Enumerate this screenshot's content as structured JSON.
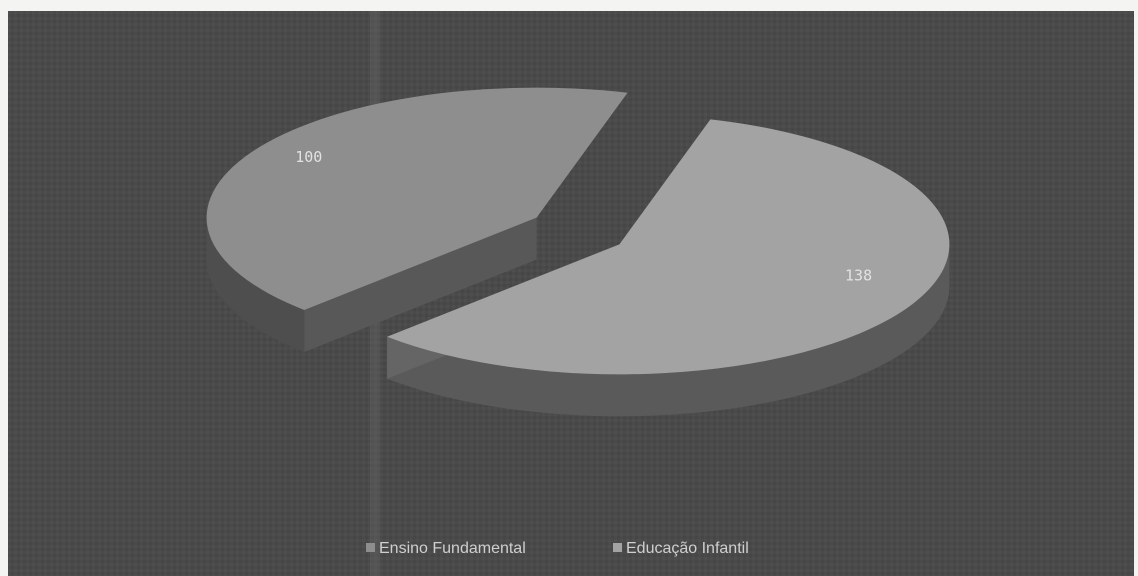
{
  "chart_data": {
    "type": "pie",
    "style": "3d-exploded",
    "categories": [
      "Ensino Fundamental",
      "Educação Infantil"
    ],
    "values": [
      100,
      138
    ],
    "colors": [
      "#8e8e8e",
      "#a3a3a3"
    ],
    "legend": {
      "position": "bottom",
      "entries": [
        "Ensino Fundamental",
        "Educação Infantil"
      ]
    },
    "data_labels": [
      "100",
      "138"
    ]
  }
}
